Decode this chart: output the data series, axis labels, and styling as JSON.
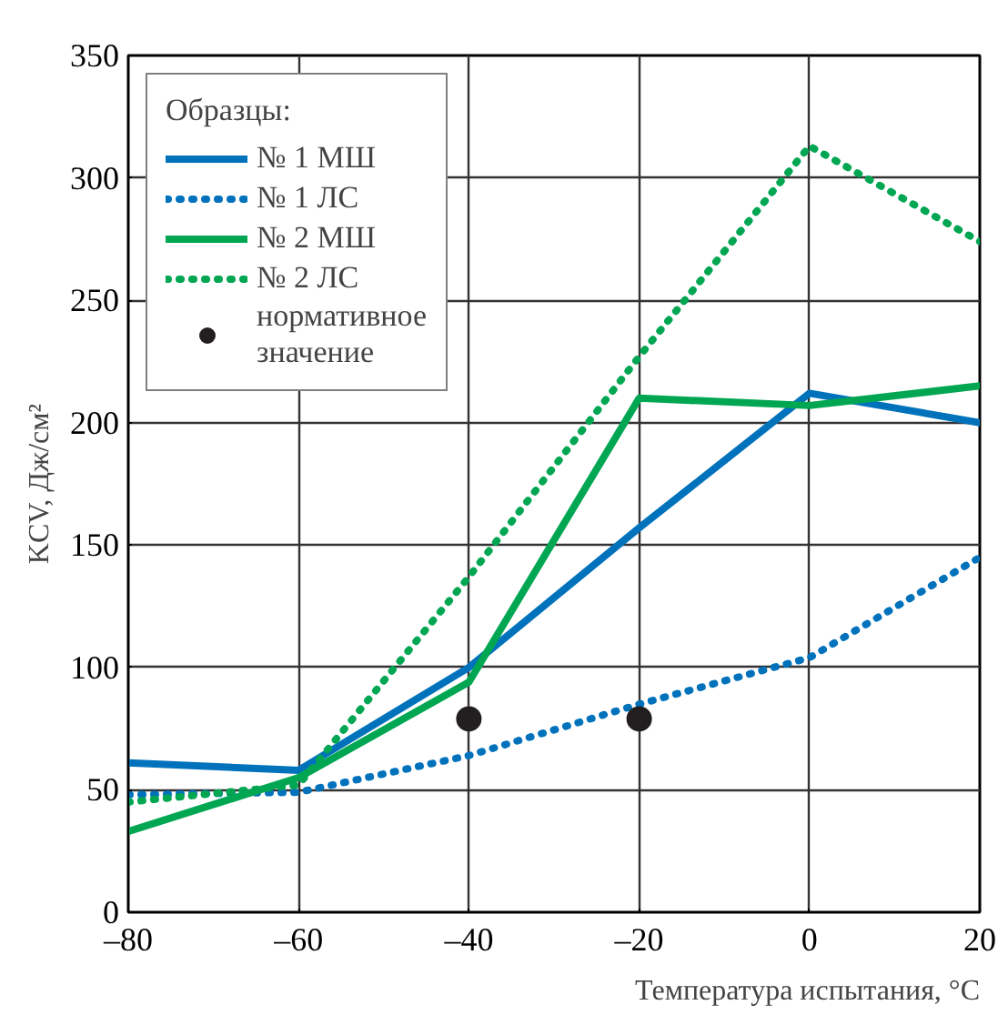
{
  "chart_data": {
    "type": "line",
    "xlabel": "Температура испытания, °C",
    "ylabel": "KCV, Дж/см²",
    "legend_title": "Образцы:",
    "x": [
      -80,
      -60,
      -40,
      -20,
      0,
      20
    ],
    "series": [
      {
        "name": "№ 1 МШ",
        "color": "#0072bc",
        "line_style": "solid",
        "values": [
          61,
          58,
          100,
          157,
          212,
          200
        ]
      },
      {
        "name": "№ 1 ЛС",
        "color": "#0072bc",
        "line_style": "dotted",
        "values": [
          48,
          49,
          64,
          85,
          104,
          145
        ]
      },
      {
        "name": "№ 2 МШ",
        "color": "#00a651",
        "line_style": "solid",
        "values": [
          33,
          55,
          94,
          210,
          207,
          215
        ]
      },
      {
        "name": "№ 2 ЛС",
        "color": "#00a651",
        "line_style": "dotted",
        "values": [
          45,
          52,
          137,
          227,
          313,
          274
        ]
      },
      {
        "name": "нормативное\nзначение",
        "type": "scatter",
        "marker": "circle",
        "color": "#231f20",
        "x": [
          -40,
          -20
        ],
        "values": [
          79,
          79
        ]
      }
    ],
    "xlim": [
      -80,
      20
    ],
    "ylim": [
      0,
      350
    ],
    "xticks": [
      {
        "value": -80,
        "label": "–80"
      },
      {
        "value": -60,
        "label": "–60"
      },
      {
        "value": -40,
        "label": "–40"
      },
      {
        "value": -20,
        "label": "–20"
      },
      0,
      20
    ],
    "yticks": [
      0,
      50,
      100,
      150,
      200,
      250,
      300,
      350
    ],
    "grid": true,
    "legend": "top left"
  }
}
